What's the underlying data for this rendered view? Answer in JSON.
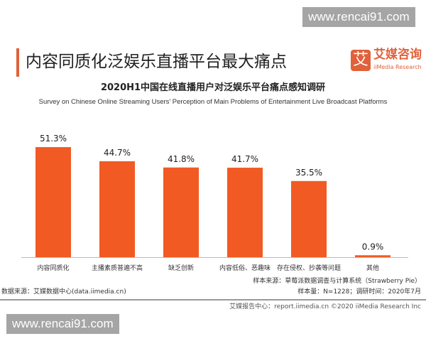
{
  "watermark": "www.rencai91.com",
  "header": {
    "title": "内容同质化泛娱乐直播平台最大痛点",
    "logo_cn": "艾媒咨询",
    "logo_en": "iiMedia Research",
    "logo_mark": "艾"
  },
  "colors": {
    "accent": "#e0613a",
    "bar": "#f15a22"
  },
  "chart_data": {
    "type": "bar",
    "title": "2020H1中国在线直播用户对泛娱乐平台痛点感知调研",
    "subtitle": "Survey on Chinese Online Streaming Users’ Perception of Main Problems of Entertainment Live Broadcast Platforms",
    "categories": [
      "内容同质化",
      "主播素质普遍不高",
      "缺乏创新",
      "内容低俗、恶趣味",
      "存在侵权、抄袭等问题",
      "其他"
    ],
    "values": [
      51.3,
      44.7,
      41.8,
      41.7,
      35.5,
      0.9
    ],
    "labels": [
      "51.3%",
      "44.7%",
      "41.8%",
      "41.7%",
      "35.5%",
      "0.9%"
    ],
    "xlabel": "",
    "ylabel": "",
    "ylim": [
      0,
      55
    ],
    "grid": false
  },
  "footer": {
    "source": "数据来源：艾媒数据中心(data.iimedia.cn)",
    "sample_source": "样本来源：草莓派数据调查与计算系统（Strawberry Pie）",
    "sample_size": "样本量：N=1228；调研时间：2020年7月",
    "report": "艾媒报告中心：report.iimedia.cn   ©2020  iiMedia Research  Inc"
  }
}
